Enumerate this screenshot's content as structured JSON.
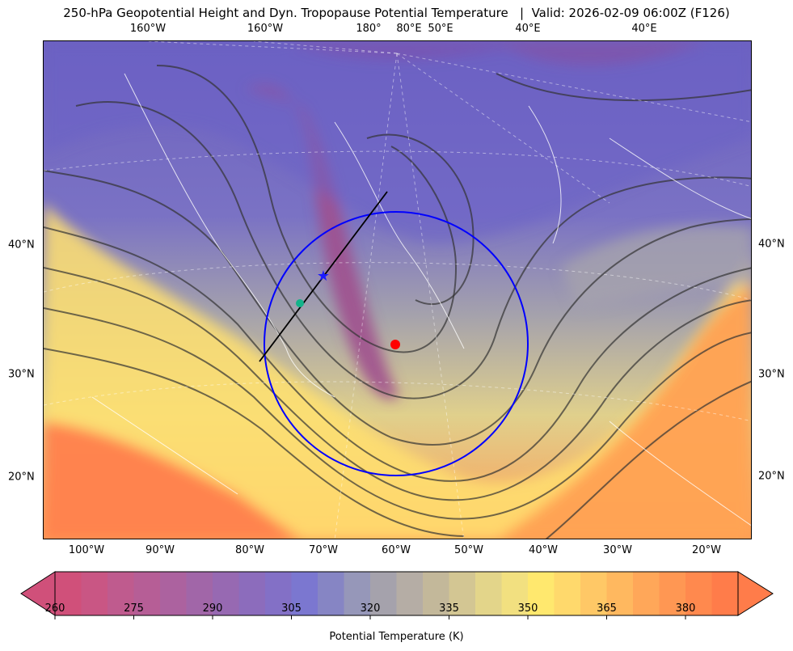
{
  "title": "250-hPa Geopotential Height and Dyn. Tropopause Potential Temperature   |  Valid: 2026-02-09 06:00Z (F126)",
  "top_labels": [
    "160°W",
    "160°W",
    "180°",
    "80°E",
    "50°E",
    "40°E",
    "40°E"
  ],
  "bottom_labels": [
    "100°W",
    "90°W",
    "80°W",
    "70°W",
    "60°W",
    "50°W",
    "40°W",
    "30°W",
    "20°W"
  ],
  "left_labels": [
    "40°N",
    "30°N",
    "20°N"
  ],
  "right_labels": [
    "40°N",
    "30°N",
    "20°N"
  ],
  "markers": {
    "circle_color": "#0000ff",
    "star_color": "#1a1aff",
    "dot1_color": "#14b38a",
    "dot2_color": "#ff0000",
    "line_color": "#000000"
  },
  "colorbar": {
    "label": "Potential Temperature (K)",
    "min": 260,
    "max": 390,
    "step": 5,
    "ticks": [
      "260",
      "275",
      "290",
      "305",
      "320",
      "335",
      "350",
      "365",
      "380"
    ],
    "colors": [
      "#d0507a",
      "#c95684",
      "#bf5b8e",
      "#b65e96",
      "#ac629f",
      "#a166a8",
      "#9769b2",
      "#8c6cbc",
      "#8370c6",
      "#7b77d0",
      "#8685c4",
      "#9697b9",
      "#a5a2ac",
      "#b5ada5",
      "#c3b89a",
      "#d3c693",
      "#e3d58a",
      "#f2e080",
      "#ffe86e",
      "#ffd96c",
      "#ffc866",
      "#ffb85f",
      "#ffa759",
      "#ff9753",
      "#ff894e",
      "#ff7c4a"
    ]
  }
}
